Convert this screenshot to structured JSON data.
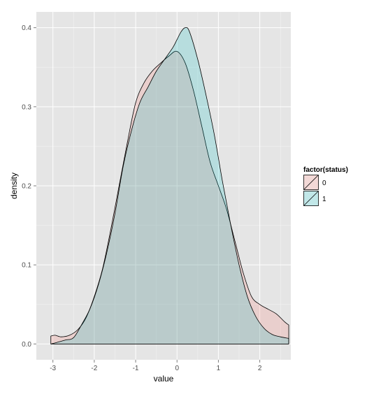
{
  "colors": {
    "panel_background": "#E5E5E5",
    "grid_major": "#FFFFFF",
    "grid_minor": "#F2F2F2",
    "tick_text": "#4D4D4D",
    "outline": "#000000"
  },
  "chart_data": {
    "type": "area",
    "subtype": "density",
    "xlabel": "value",
    "ylabel": "density",
    "xlim": [
      -3.4,
      2.75
    ],
    "ylim": [
      -0.02,
      0.42
    ],
    "xticks": [
      -3,
      -2,
      -1,
      0,
      1,
      2
    ],
    "xtick_labels": [
      "-3",
      "-2",
      "-1",
      "0",
      "1",
      "2"
    ],
    "yticks": [
      0.0,
      0.1,
      0.2,
      0.3,
      0.4
    ],
    "ytick_labels": [
      "0.0",
      "0.1",
      "0.2",
      "0.3",
      "0.4"
    ],
    "grid": true,
    "legend": {
      "title": "factor(status)",
      "position": "right",
      "entries": [
        "0",
        "1"
      ]
    },
    "series": [
      {
        "name": "0",
        "fill": "#F8766D",
        "fill_opacity": 0.2,
        "x": [
          -3.05,
          -2.95,
          -2.8,
          -2.6,
          -2.4,
          -2.2,
          -2.0,
          -1.8,
          -1.6,
          -1.4,
          -1.2,
          -1.0,
          -0.8,
          -0.6,
          -0.4,
          -0.2,
          0.0,
          0.2,
          0.4,
          0.6,
          0.8,
          1.0,
          1.2,
          1.4,
          1.6,
          1.8,
          2.0,
          2.2,
          2.4,
          2.6,
          2.7
        ],
        "y": [
          0.01,
          0.011,
          0.009,
          0.011,
          0.018,
          0.033,
          0.06,
          0.095,
          0.145,
          0.2,
          0.255,
          0.305,
          0.33,
          0.345,
          0.355,
          0.364,
          0.37,
          0.355,
          0.32,
          0.275,
          0.23,
          0.2,
          0.17,
          0.13,
          0.09,
          0.06,
          0.05,
          0.044,
          0.038,
          0.028,
          0.024
        ]
      },
      {
        "name": "1",
        "fill": "#00BFC4",
        "fill_opacity": 0.2,
        "x": [
          -3.05,
          -2.9,
          -2.7,
          -2.5,
          -2.3,
          -2.1,
          -1.9,
          -1.7,
          -1.5,
          -1.3,
          -1.1,
          -0.9,
          -0.7,
          -0.5,
          -0.3,
          -0.1,
          0.0,
          0.1,
          0.2,
          0.3,
          0.5,
          0.7,
          0.9,
          1.1,
          1.3,
          1.5,
          1.7,
          1.9,
          2.1,
          2.3,
          2.5,
          2.7
        ],
        "y": [
          0.0,
          0.002,
          0.005,
          0.008,
          0.025,
          0.045,
          0.075,
          0.115,
          0.165,
          0.225,
          0.27,
          0.305,
          0.325,
          0.345,
          0.36,
          0.375,
          0.385,
          0.395,
          0.4,
          0.395,
          0.36,
          0.315,
          0.265,
          0.205,
          0.15,
          0.1,
          0.06,
          0.035,
          0.02,
          0.012,
          0.009,
          0.007
        ]
      }
    ]
  }
}
